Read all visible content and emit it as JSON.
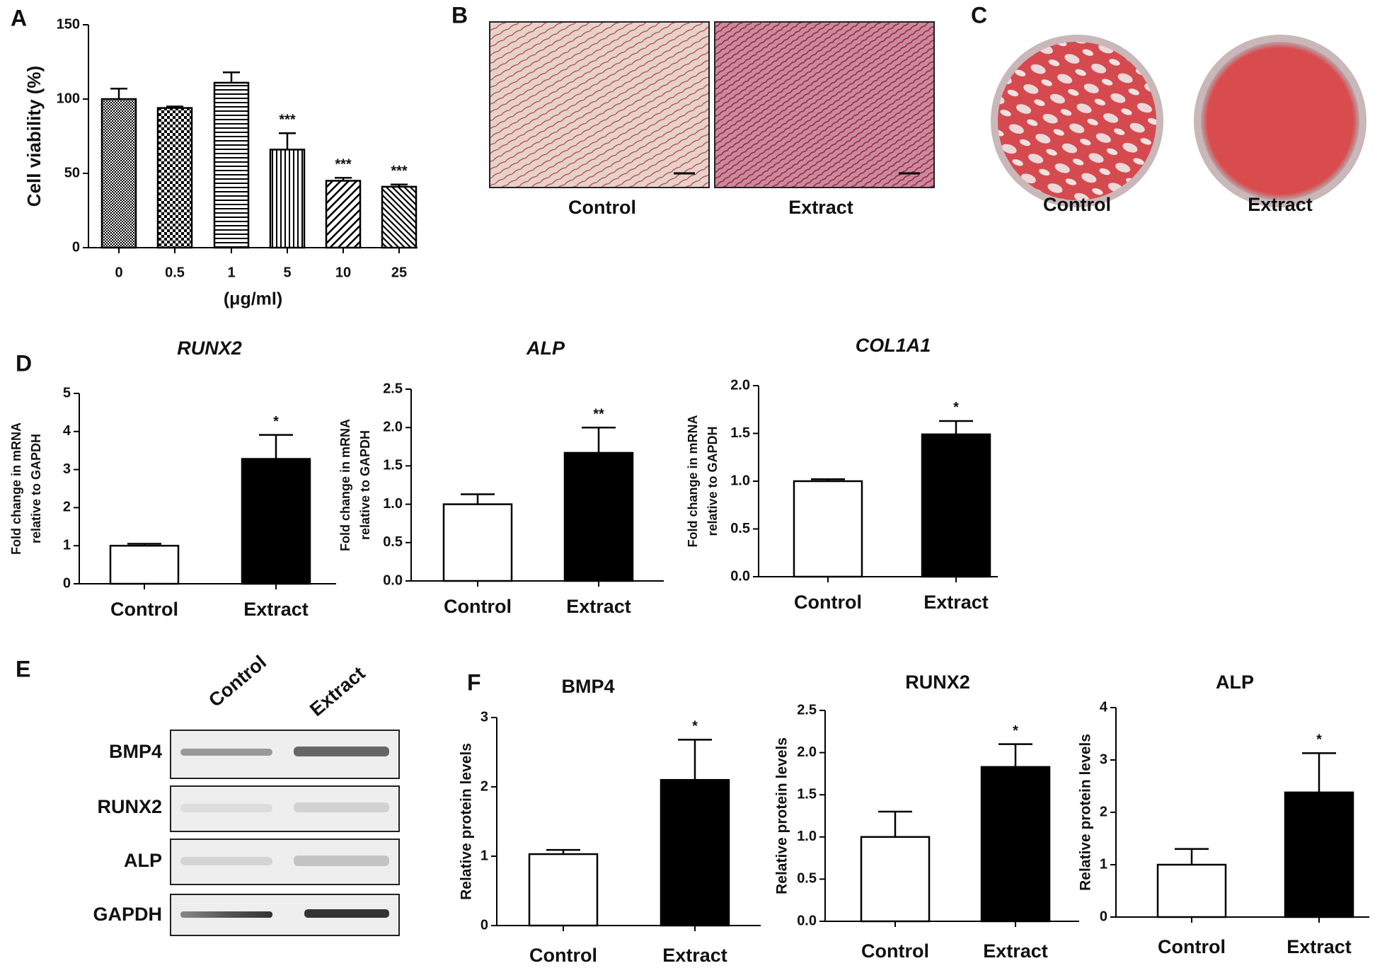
{
  "chart_data": [
    {
      "type": "bar",
      "ylabel": "Cell viability (%)",
      "xlabel": "(μg/ml)",
      "categories": [
        "0",
        "0.5",
        "1",
        "5",
        "10",
        "25"
      ],
      "values": [
        100,
        94,
        111,
        66,
        45,
        41
      ],
      "errors": [
        7,
        1,
        7,
        11,
        2,
        1.5
      ],
      "significance": [
        null,
        null,
        null,
        "***",
        "***",
        "***"
      ],
      "ylim": [
        0,
        150
      ],
      "yticks": [
        0,
        50,
        100,
        150
      ]
    },
    {
      "type": "bar",
      "title": "RUNX2",
      "ylabel": [
        "Fold change in mRNA",
        "relative to GAPDH"
      ],
      "categories": [
        "Control",
        "Extract"
      ],
      "values": [
        1.0,
        3.28
      ],
      "errors": [
        0.05,
        0.63
      ],
      "colors": [
        "#ffffff",
        "#000000"
      ],
      "significance": [
        null,
        "*"
      ],
      "ylim": [
        0,
        5
      ],
      "yticks": [
        0,
        1,
        2,
        3,
        4,
        5
      ]
    },
    {
      "type": "bar",
      "title": "ALP",
      "ylabel": [
        "Fold change in mRNA",
        "relative to GAPDH"
      ],
      "categories": [
        "Control",
        "Extract"
      ],
      "values": [
        1.0,
        1.67
      ],
      "errors": [
        0.13,
        0.33
      ],
      "colors": [
        "#ffffff",
        "#000000"
      ],
      "significance": [
        null,
        "**"
      ],
      "ylim": [
        0,
        2.5
      ],
      "yticks": [
        {
          "value": 0,
          "label": "0.0"
        },
        0.5,
        {
          "value": 1,
          "label": "1.0"
        },
        1.5,
        {
          "value": 2,
          "label": "2.0"
        },
        2.5
      ]
    },
    {
      "type": "bar",
      "title": "COL1A1",
      "ylabel": [
        "Fold change in mRNA",
        "relative to GAPDH"
      ],
      "categories": [
        "Control",
        "Extract"
      ],
      "values": [
        1.0,
        1.49
      ],
      "errors": [
        0.02,
        0.14
      ],
      "colors": [
        "#ffffff",
        "#000000"
      ],
      "significance": [
        null,
        "*"
      ],
      "ylim": [
        0,
        2.0
      ],
      "yticks": [
        {
          "value": 0,
          "label": "0.0"
        },
        0.5,
        {
          "value": 1,
          "label": "1.0"
        },
        1.5,
        {
          "value": 2,
          "label": "2.0"
        }
      ]
    },
    {
      "type": "bar",
      "title": "BMP4",
      "ylabel": "Relative protein levels",
      "categories": [
        "Control",
        "Extract"
      ],
      "values": [
        1.03,
        2.1
      ],
      "errors": [
        0.06,
        0.58
      ],
      "colors": [
        "#ffffff",
        "#000000"
      ],
      "significance": [
        null,
        "*"
      ],
      "ylim": [
        0,
        3
      ],
      "yticks": [
        0,
        1,
        2,
        3
      ]
    },
    {
      "type": "bar",
      "title": "RUNX2",
      "ylabel": "Relative protein levels",
      "categories": [
        "Control",
        "Extract"
      ],
      "values": [
        1.0,
        1.83
      ],
      "errors": [
        0.3,
        0.27
      ],
      "colors": [
        "#ffffff",
        "#000000"
      ],
      "significance": [
        null,
        "*"
      ],
      "ylim": [
        0,
        2.5
      ],
      "yticks": [
        {
          "value": 0,
          "label": "0.0"
        },
        0.5,
        {
          "value": 1,
          "label": "1.0"
        },
        1.5,
        {
          "value": 2,
          "label": "2.0"
        },
        2.5
      ]
    },
    {
      "type": "bar",
      "title": "ALP",
      "ylabel": "Relative protein levels",
      "categories": [
        "Control",
        "Extract"
      ],
      "values": [
        1.0,
        2.38
      ],
      "errors": [
        0.3,
        0.75
      ],
      "colors": [
        "#ffffff",
        "#000000"
      ],
      "significance": [
        null,
        "*"
      ],
      "ylim": [
        0,
        4
      ],
      "yticks": [
        0,
        1,
        2,
        3,
        4
      ]
    }
  ],
  "panel_letters": [
    "A",
    "B",
    "C",
    "D",
    "E",
    "F"
  ],
  "stain_b": [
    "Control",
    "Extract"
  ],
  "stain_c": [
    "Control",
    "Extract"
  ],
  "western_blot": {
    "columns": [
      "Control",
      "Extract"
    ],
    "rows": [
      "BMP4",
      "RUNX2",
      "ALP",
      "GAPDH"
    ]
  }
}
